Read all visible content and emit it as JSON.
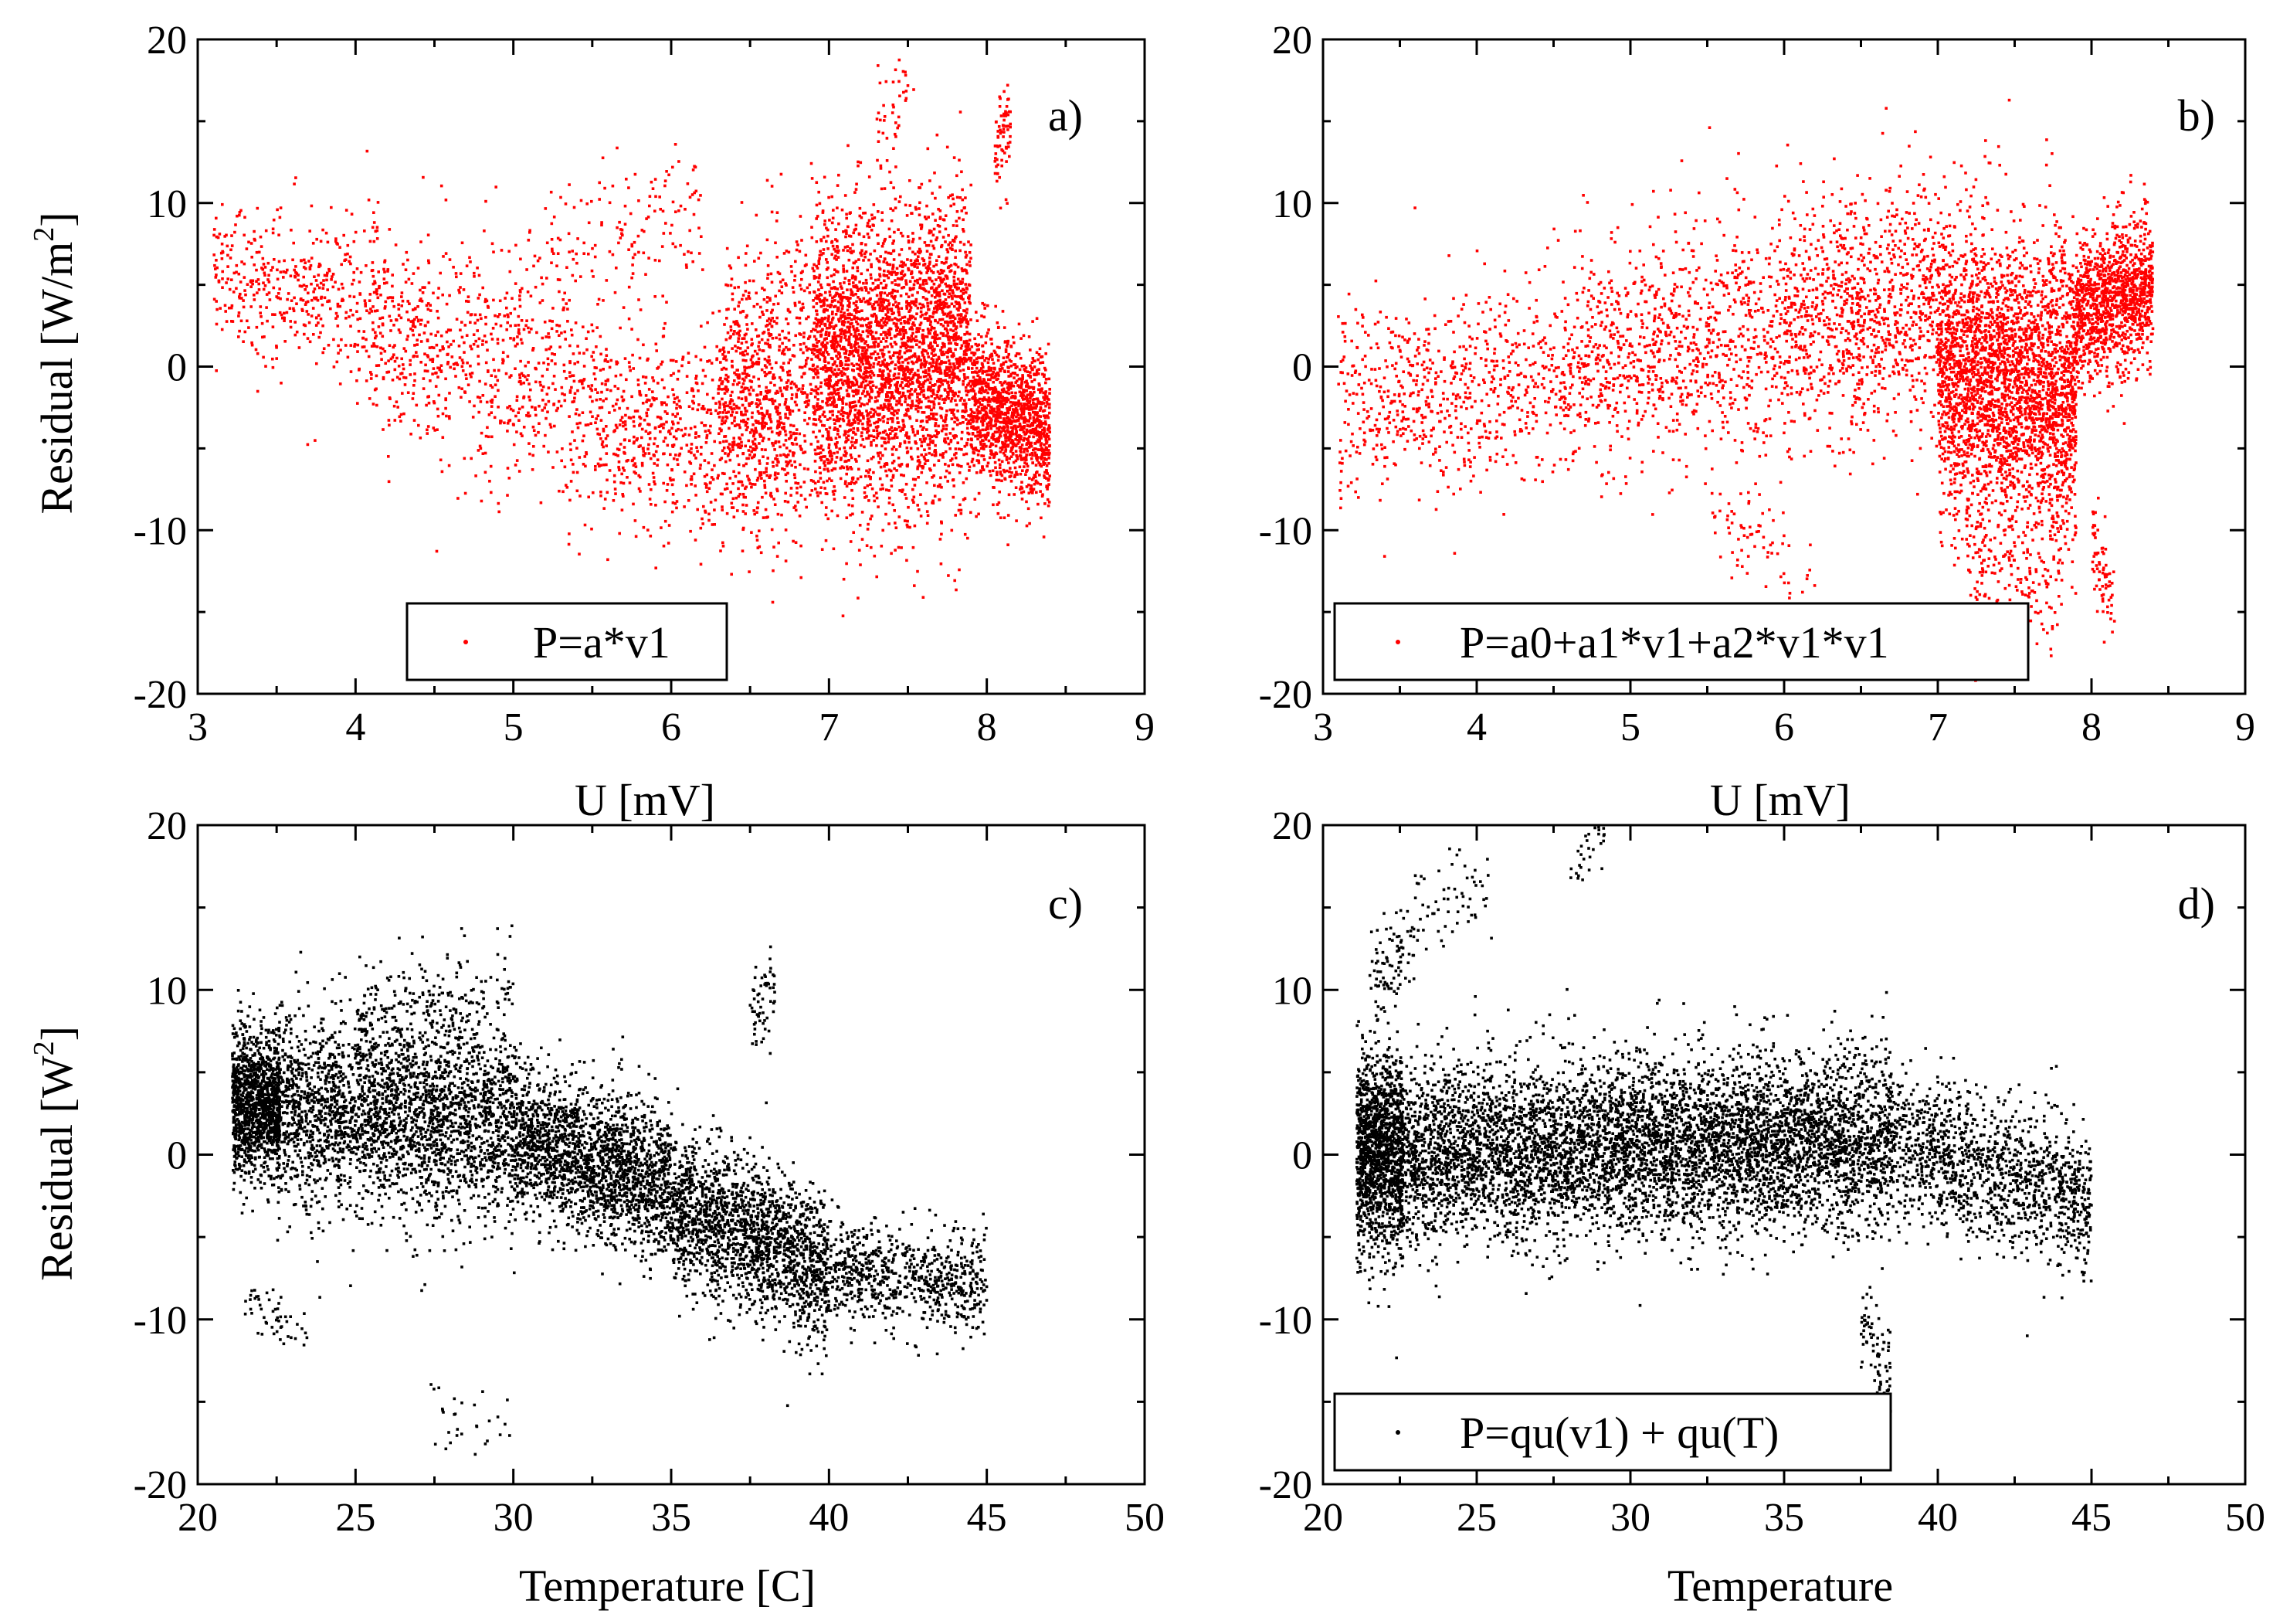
{
  "chart_data": [
    {
      "id": "a",
      "type": "scatter",
      "panel_label": "a)",
      "title": "",
      "xlabel": "U [mV]",
      "ylabel": "Residual [W/m2]",
      "ylabel_parts": {
        "base": "Residual [W/m",
        "sup": "2",
        "tail": "]"
      },
      "xlim": [
        3,
        9
      ],
      "ylim": [
        -20,
        20
      ],
      "xticks": [
        3,
        4,
        5,
        6,
        7,
        8,
        9
      ],
      "yticks": [
        -20,
        -10,
        0,
        10,
        20
      ],
      "grid": false,
      "legend": {
        "label": "P=a*v1",
        "placement": "bottom-center"
      },
      "series": [
        {
          "name": "P=a*v1",
          "color": "#ff0000",
          "marker": "dot",
          "approx_point_count": 9000,
          "clusters": [
            {
              "x": [
                3.1,
                4.0
              ],
              "y_center": [
                6,
                4
              ],
              "y_spread": [
                3,
                3
              ],
              "n": 380
            },
            {
              "x": [
                4.0,
                5.5
              ],
              "y_center": [
                3,
                -2
              ],
              "y_spread": [
                4,
                5
              ],
              "n": 820
            },
            {
              "x": [
                5.0,
                6.2
              ],
              "y_center": [
                6,
                10
              ],
              "y_spread": [
                3,
                3
              ],
              "n": 160
            },
            {
              "x": [
                5.5,
                6.8
              ],
              "y_center": [
                -3,
                -5
              ],
              "y_spread": [
                4,
                4
              ],
              "n": 820
            },
            {
              "x": [
                6.3,
                6.9
              ],
              "y_center": [
                -1,
                0
              ],
              "y_spread": [
                5,
                6
              ],
              "n": 620
            },
            {
              "x": [
                6.9,
                7.9
              ],
              "y_center": [
                0,
                1
              ],
              "y_spread": [
                6,
                6
              ],
              "n": 3200
            },
            {
              "x": [
                7.3,
                7.5
              ],
              "y_center": [
                15,
                17
              ],
              "y_spread": [
                2,
                2
              ],
              "n": 40
            },
            {
              "x": [
                8.05,
                8.15
              ],
              "y_center": [
                13,
                15
              ],
              "y_spread": [
                2,
                2
              ],
              "n": 70
            },
            {
              "x": [
                7.9,
                8.4
              ],
              "y_center": [
                -2,
                -4
              ],
              "y_spread": [
                3,
                3
              ],
              "n": 1300
            }
          ]
        }
      ]
    },
    {
      "id": "b",
      "type": "scatter",
      "panel_label": "b)",
      "title": "",
      "xlabel": "U [mV]",
      "ylabel": "",
      "xlim": [
        3,
        9
      ],
      "ylim": [
        -20,
        20
      ],
      "xticks": [
        3,
        4,
        5,
        6,
        7,
        8,
        9
      ],
      "yticks": [
        -20,
        -10,
        0,
        10,
        20
      ],
      "grid": false,
      "legend": {
        "label": "P=a0+a1*v1+a2*v1*v1",
        "placement": "bottom-left"
      },
      "series": [
        {
          "name": "P=a0+a1*v1+a2*v1*v1",
          "color": "#ff0000",
          "marker": "dot",
          "approx_point_count": 9000,
          "clusters": [
            {
              "x": [
                3.1,
                4.5
              ],
              "y_center": [
                -2,
                -1
              ],
              "y_spread": [
                4,
                4
              ],
              "n": 650
            },
            {
              "x": [
                4.5,
                6.0
              ],
              "y_center": [
                0,
                2
              ],
              "y_spread": [
                4,
                5
              ],
              "n": 1000
            },
            {
              "x": [
                5.5,
                6.2
              ],
              "y_center": [
                -9,
                -13
              ],
              "y_spread": [
                2,
                2
              ],
              "n": 70
            },
            {
              "x": [
                6.0,
                7.0
              ],
              "y_center": [
                3,
                4
              ],
              "y_spread": [
                5,
                5
              ],
              "n": 1000
            },
            {
              "x": [
                7.0,
                7.9
              ],
              "y_center": [
                0,
                -2
              ],
              "y_spread": [
                6,
                6
              ],
              "n": 3000
            },
            {
              "x": [
                7.2,
                7.8
              ],
              "y_center": [
                -12,
                -14
              ],
              "y_spread": [
                3,
                3
              ],
              "n": 150
            },
            {
              "x": [
                7.9,
                8.4
              ],
              "y_center": [
                3,
                5
              ],
              "y_spread": [
                3,
                3
              ],
              "n": 1150
            },
            {
              "x": [
                8.0,
                8.15
              ],
              "y_center": [
                -11,
                -15
              ],
              "y_spread": [
                2,
                2
              ],
              "n": 70
            }
          ]
        }
      ]
    },
    {
      "id": "c",
      "type": "scatter",
      "panel_label": "c)",
      "title": "",
      "xlabel": "Temperature [C]",
      "ylabel": "Residual [W2]",
      "ylabel_parts": {
        "base": "Residual [W",
        "sup": "2",
        "tail": "]"
      },
      "xlim": [
        20,
        50
      ],
      "ylim": [
        -20,
        20
      ],
      "xticks": [
        20,
        25,
        30,
        35,
        40,
        45,
        50
      ],
      "yticks": [
        -20,
        -10,
        0,
        10,
        20
      ],
      "grid": false,
      "legend": null,
      "series": [
        {
          "name": "",
          "color": "#000000",
          "marker": "dot",
          "approx_point_count": 9000,
          "clusters": [
            {
              "x": [
                21.1,
                22.6
              ],
              "y_center": [
                3,
                3
              ],
              "y_spread": [
                3,
                3
              ],
              "n": 1250
            },
            {
              "x": [
                21.5,
                23.5
              ],
              "y_center": [
                -9,
                -11
              ],
              "y_spread": [
                1,
                1
              ],
              "n": 50
            },
            {
              "x": [
                22.5,
                30.0
              ],
              "y_center": [
                3,
                2
              ],
              "y_spread": [
                4,
                4
              ],
              "n": 2700
            },
            {
              "x": [
                25.0,
                30.0
              ],
              "y_center": [
                8,
                10
              ],
              "y_spread": [
                2,
                2
              ],
              "n": 200
            },
            {
              "x": [
                30.0,
                35.0
              ],
              "y_center": [
                1,
                -2
              ],
              "y_spread": [
                3,
                3
              ],
              "n": 2000
            },
            {
              "x": [
                35.0,
                40.0
              ],
              "y_center": [
                -3,
                -7
              ],
              "y_spread": [
                3,
                3
              ],
              "n": 1800
            },
            {
              "x": [
                37.5,
                38.3
              ],
              "y_center": [
                8,
                10
              ],
              "y_spread": [
                2,
                2
              ],
              "n": 60
            },
            {
              "x": [
                40.0,
                45.0
              ],
              "y_center": [
                -7,
                -8
              ],
              "y_spread": [
                2,
                2
              ],
              "n": 700
            },
            {
              "x": [
                27.0,
                30.0
              ],
              "y_center": [
                -16,
                -16
              ],
              "y_spread": [
                1.5,
                1.5
              ],
              "n": 30
            }
          ]
        }
      ]
    },
    {
      "id": "d",
      "type": "scatter",
      "panel_label": "d)",
      "title": "",
      "xlabel": "Temperature",
      "ylabel": "",
      "xlim": [
        20,
        50
      ],
      "ylim": [
        -20,
        20
      ],
      "xticks": [
        20,
        25,
        30,
        35,
        40,
        45,
        50
      ],
      "yticks": [
        -20,
        -10,
        0,
        10,
        20
      ],
      "grid": false,
      "legend": {
        "label": "P=qu(v1) + qu(T)",
        "placement": "bottom-left"
      },
      "series": [
        {
          "name": "P=qu(v1) + qu(T)",
          "color": "#000000",
          "marker": "dot",
          "approx_point_count": 9000,
          "clusters": [
            {
              "x": [
                21.1,
                22.6
              ],
              "y_center": [
                0,
                0
              ],
              "y_spread": [
                4,
                4
              ],
              "n": 1400
            },
            {
              "x": [
                21.5,
                23.0
              ],
              "y_center": [
                10,
                13
              ],
              "y_spread": [
                2,
                2
              ],
              "n": 90
            },
            {
              "x": [
                23.0,
                25.5
              ],
              "y_center": [
                14,
                16
              ],
              "y_spread": [
                2,
                2
              ],
              "n": 60
            },
            {
              "x": [
                28.0,
                29.2
              ],
              "y_center": [
                17,
                19
              ],
              "y_spread": [
                1,
                1
              ],
              "n": 30
            },
            {
              "x": [
                22.5,
                38.5
              ],
              "y_center": [
                0,
                1
              ],
              "y_spread": [
                3.5,
                3.5
              ],
              "n": 6000
            },
            {
              "x": [
                37.5,
                38.5
              ],
              "y_center": [
                -10,
                -14
              ],
              "y_spread": [
                2,
                2
              ],
              "n": 80
            },
            {
              "x": [
                38.5,
                45.0
              ],
              "y_center": [
                1,
                -3
              ],
              "y_spread": [
                3,
                3
              ],
              "n": 1300
            }
          ]
        }
      ]
    }
  ]
}
